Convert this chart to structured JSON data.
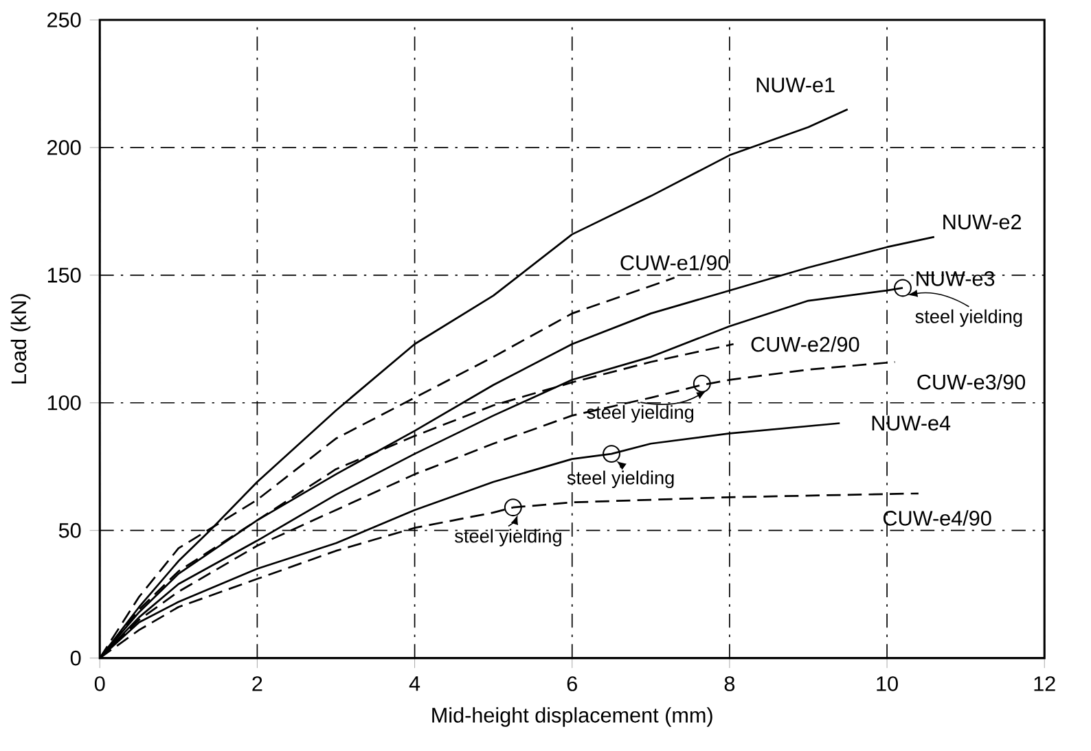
{
  "chart_data": {
    "type": "line",
    "xlabel": "Mid-height displacement (mm)",
    "ylabel": "Load (kN)",
    "xlim": [
      0,
      12
    ],
    "ylim": [
      0,
      250
    ],
    "xticks": [
      0,
      2,
      4,
      6,
      8,
      10,
      12
    ],
    "yticks": [
      0,
      50,
      100,
      150,
      200,
      250
    ],
    "grid": true,
    "legend": false,
    "marker": "none",
    "series": [
      {
        "name": "NUW-e1",
        "color": "#000000",
        "line_style": "solid",
        "x": [
          0,
          0.5,
          1,
          1.4,
          2,
          3,
          4,
          5,
          6,
          7,
          8,
          9,
          9.5
        ],
        "values": [
          0,
          20,
          38,
          50,
          69,
          97,
          123,
          142,
          166,
          181,
          197,
          208,
          215
        ]
      },
      {
        "name": "NUW-e2",
        "color": "#000000",
        "line_style": "solid",
        "x": [
          0,
          0.5,
          1,
          2,
          3,
          4,
          5,
          6,
          7,
          8,
          9,
          10,
          10.6
        ],
        "values": [
          0,
          18,
          33,
          54,
          72,
          89,
          107,
          123,
          135,
          144,
          153,
          161,
          165
        ]
      },
      {
        "name": "NUW-e3",
        "color": "#000000",
        "line_style": "solid",
        "x": [
          0,
          0.5,
          1,
          2,
          3,
          4,
          5,
          6,
          7,
          8,
          9,
          10,
          10.2
        ],
        "values": [
          0,
          16,
          29,
          46,
          64,
          80,
          95,
          109,
          118,
          130,
          140,
          144,
          145
        ]
      },
      {
        "name": "CUW-e1/90",
        "color": "#000000",
        "line_style": "dashed",
        "x": [
          0,
          0.5,
          1,
          2,
          3,
          4,
          5,
          6,
          7.3
        ],
        "values": [
          0,
          24,
          43,
          62,
          86,
          102,
          118,
          135,
          149
        ]
      },
      {
        "name": "CUW-e2/90",
        "color": "#000000",
        "line_style": "dashed",
        "x": [
          0,
          0.5,
          1,
          2,
          3,
          4,
          5,
          6,
          7,
          8.05
        ],
        "values": [
          0,
          19,
          34,
          54,
          74,
          87,
          99,
          108,
          116,
          123
        ]
      },
      {
        "name": "CUW-e3/90",
        "color": "#000000",
        "line_style": "dashed",
        "x": [
          0,
          0.5,
          1,
          2,
          3,
          4,
          5,
          6,
          7,
          7.65,
          8,
          9,
          10.1
        ],
        "values": [
          0,
          15,
          26,
          44,
          58,
          72,
          84,
          95,
          102,
          107,
          109,
          113,
          116
        ]
      },
      {
        "name": "NUW-e4",
        "color": "#000000",
        "line_style": "solid",
        "x": [
          0,
          0.5,
          1,
          2,
          3,
          4,
          5,
          6,
          6.5,
          7,
          8,
          9.4
        ],
        "values": [
          0,
          14,
          22,
          35,
          45,
          58,
          69,
          78,
          80,
          84,
          88,
          92
        ]
      },
      {
        "name": "CUW-e4/90",
        "color": "#000000",
        "line_style": "dashed",
        "x": [
          0,
          0.5,
          1,
          2,
          3,
          4,
          5,
          5.25,
          6,
          8,
          10.4
        ],
        "values": [
          0,
          11,
          20,
          31,
          42,
          51,
          57,
          59,
          61,
          63,
          64.5
        ]
      }
    ],
    "annotations": [
      {
        "text": "steel yielding",
        "x": 10.2,
        "y": 145
      },
      {
        "text": "steel yielding",
        "x": 7.65,
        "y": 107.5
      },
      {
        "text": "steel yielding",
        "x": 6.5,
        "y": 80
      },
      {
        "text": "steel yielding",
        "x": 5.25,
        "y": 59
      }
    ]
  }
}
